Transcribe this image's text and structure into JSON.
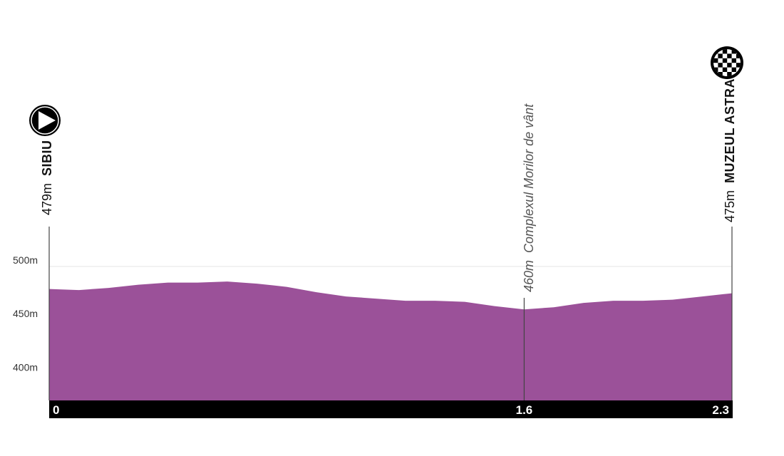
{
  "colors": {
    "profile_fill": "#9b5199",
    "km_bar": "#000000",
    "marker_line": "#444444",
    "gridline": "#e6e6e6"
  },
  "start": {
    "altitude": "479m",
    "name": "SIBIU",
    "icon": "play-icon"
  },
  "finish": {
    "altitude": "475m",
    "name": "MUZEUL ASTRA",
    "icon": "checkered-flag-icon"
  },
  "checkpoint": {
    "altitude": "460m",
    "name": "Complexul Morilor de vânt"
  },
  "chart_data": {
    "type": "area",
    "x": [
      0,
      0.1,
      0.2,
      0.3,
      0.4,
      0.5,
      0.6,
      0.7,
      0.8,
      0.9,
      1.0,
      1.1,
      1.2,
      1.3,
      1.4,
      1.5,
      1.6,
      1.7,
      1.8,
      1.9,
      2.0,
      2.1,
      2.2,
      2.3
    ],
    "y": [
      479,
      478,
      480,
      483,
      485,
      485,
      486,
      484,
      481,
      476,
      472,
      470,
      468,
      468,
      467,
      463,
      460,
      462,
      466,
      468,
      468,
      469,
      472,
      475
    ],
    "xlim": [
      0,
      2.3
    ],
    "ylim": [
      375,
      505
    ],
    "y_ticks": [
      {
        "value": 400,
        "label": "400m"
      },
      {
        "value": 450,
        "label": "450m"
      },
      {
        "value": 500,
        "label": "500m"
      }
    ],
    "x_ticks": [
      {
        "value": 0,
        "label": "0"
      },
      {
        "value": 1.6,
        "label": "1.6"
      },
      {
        "value": 2.3,
        "label": "2.3"
      }
    ],
    "grid": true
  }
}
